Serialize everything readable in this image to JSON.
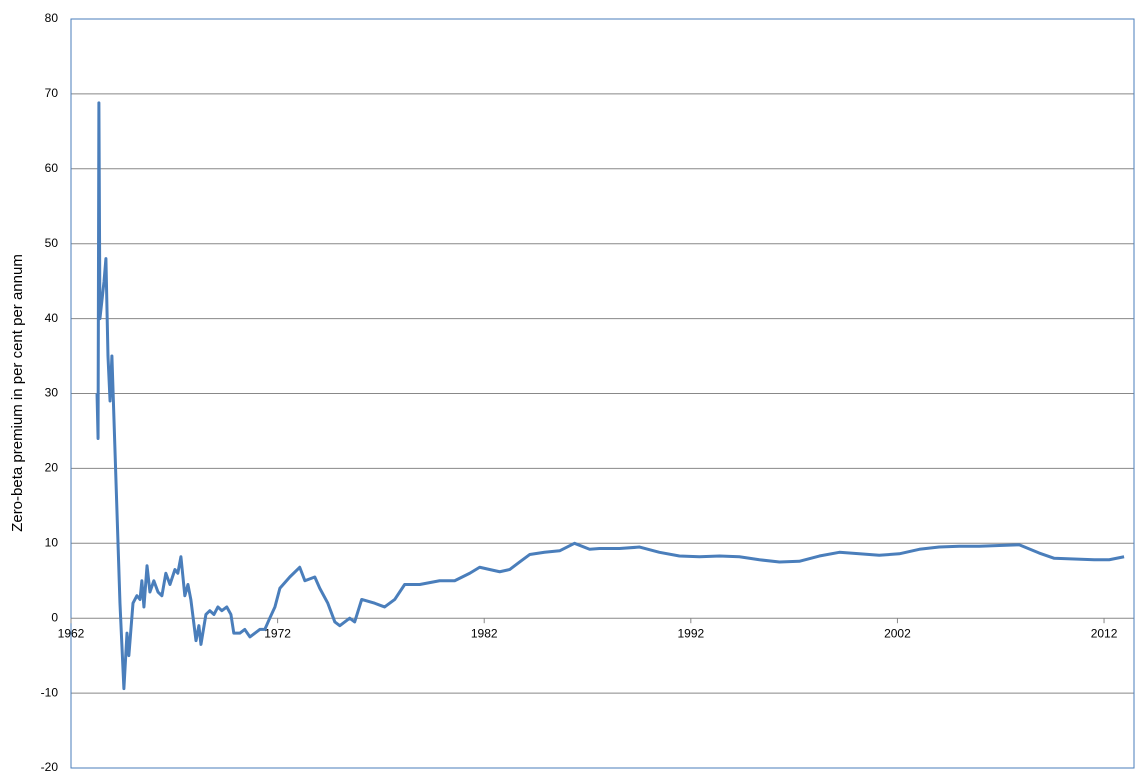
{
  "chart_data": {
    "type": "line",
    "y_label": "Zero-beta premium in per cent per annum",
    "x": [
      1963.26,
      1963.31,
      1963.35,
      1963.4,
      1963.6,
      1963.69,
      1963.79,
      1963.89,
      1963.98,
      1964.37,
      1964.56,
      1964.71,
      1964.8,
      1965.0,
      1965.19,
      1965.34,
      1965.43,
      1965.53,
      1965.68,
      1965.82,
      1966.01,
      1966.21,
      1966.4,
      1966.59,
      1966.79,
      1967.03,
      1967.17,
      1967.32,
      1967.51,
      1967.66,
      1967.8,
      1968.05,
      1968.19,
      1968.29,
      1968.53,
      1968.72,
      1968.92,
      1969.11,
      1969.3,
      1969.54,
      1969.74,
      1969.88,
      1970.17,
      1970.41,
      1970.66,
      1970.9,
      1971.14,
      1971.38,
      1971.62,
      1971.87,
      1972.11,
      1972.59,
      1973.07,
      1973.32,
      1973.8,
      1974.04,
      1974.43,
      1974.77,
      1975.01,
      1975.49,
      1975.73,
      1976.07,
      1976.7,
      1977.18,
      1977.67,
      1978.15,
      1978.88,
      1979.84,
      1980.57,
      1981.3,
      1981.78,
      1982.26,
      1982.75,
      1983.23,
      1983.71,
      1984.2,
      1984.92,
      1985.65,
      1986.37,
      1987.1,
      1987.58,
      1988.55,
      1989.52,
      1990.48,
      1991.45,
      1992.42,
      1993.39,
      1994.35,
      1995.32,
      1996.29,
      1997.25,
      1998.22,
      1999.19,
      2000.16,
      2001.12,
      2002.09,
      2003.06,
      2004.02,
      2004.99,
      2005.96,
      2006.93,
      2007.89,
      2008.86,
      2009.59,
      2010.55,
      2011.52,
      2012.25,
      2012.97
    ],
    "series": [
      {
        "color": "#4a7ebb",
        "values": [
          30,
          24,
          68.8,
          40,
          45,
          48,
          35,
          29,
          35,
          2,
          -9.4,
          -2,
          -5,
          2,
          3,
          2.5,
          5,
          1.5,
          7,
          3.5,
          5,
          3.5,
          3,
          6,
          4.5,
          6.5,
          6,
          8.2,
          3,
          4.5,
          2.5,
          -3,
          -1,
          -3.5,
          0.5,
          1,
          0.5,
          1.5,
          1,
          1.5,
          0.5,
          -2,
          -2,
          -1.5,
          -2.5,
          -2,
          -1.5,
          -1.5,
          0,
          1.5,
          4,
          5.5,
          6.8,
          5,
          5.5,
          4,
          2,
          -0.5,
          -1,
          0,
          -0.5,
          2.5,
          2,
          1.5,
          2.5,
          4.5,
          4.5,
          5,
          5,
          6,
          6.8,
          6.5,
          6.2,
          6.5,
          7.5,
          8.5,
          8.8,
          9,
          10,
          9.2,
          9.3,
          9.3,
          9.5,
          8.8,
          8.3,
          8.2,
          8.3,
          8.2,
          7.8,
          7.5,
          7.6,
          8.3,
          8.8,
          8.6,
          8.4,
          8.6,
          9.2,
          9.5,
          9.6,
          9.6,
          9.7,
          9.8,
          8.7,
          8.0,
          7.9,
          7.8,
          7.8,
          8.2
        ]
      }
    ],
    "xlim": [
      1962,
      2013.45
    ],
    "xticks": [
      1962,
      1972,
      1982,
      1992,
      2002,
      2012
    ],
    "ylim": [
      -20,
      80
    ],
    "yticks": [
      -20,
      -10,
      0,
      10,
      20,
      30,
      40,
      50,
      60,
      70,
      80
    ],
    "grid": true,
    "frame_color": "#4a7ebb"
  }
}
